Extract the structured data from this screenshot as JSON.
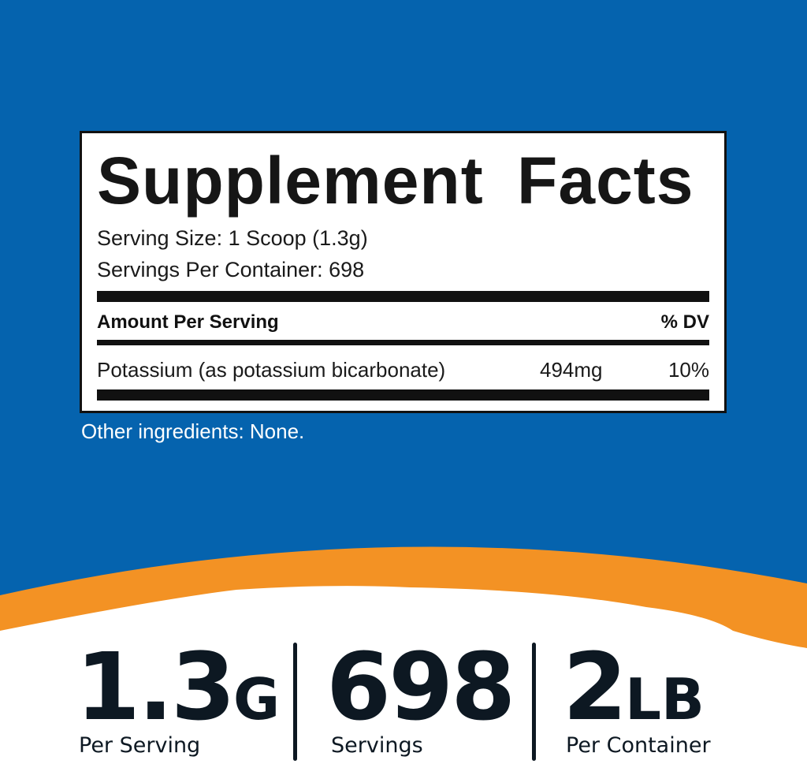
{
  "colors": {
    "background": "#0563ae",
    "accent": "#f39224",
    "text_dark": "#0d1822"
  },
  "label": {
    "title": "Supplement Facts",
    "serving_size": "Serving Size: 1 Scoop (1.3g)",
    "servings_per_container": "Servings Per Container: 698",
    "amount_header": "Amount Per Serving",
    "dv_header": "% DV",
    "rows": [
      {
        "name": "Potassium (as potassium bicarbonate)",
        "amount": "494mg",
        "dv": "10%"
      }
    ]
  },
  "other_ingredients": "Other ingredients: None.",
  "stats": [
    {
      "value": "1.3",
      "unit": "G",
      "caption": "Per Serving"
    },
    {
      "value": "698",
      "unit": "",
      "caption": "Servings"
    },
    {
      "value": "2",
      "unit": "LB",
      "caption": "Per Container"
    }
  ]
}
